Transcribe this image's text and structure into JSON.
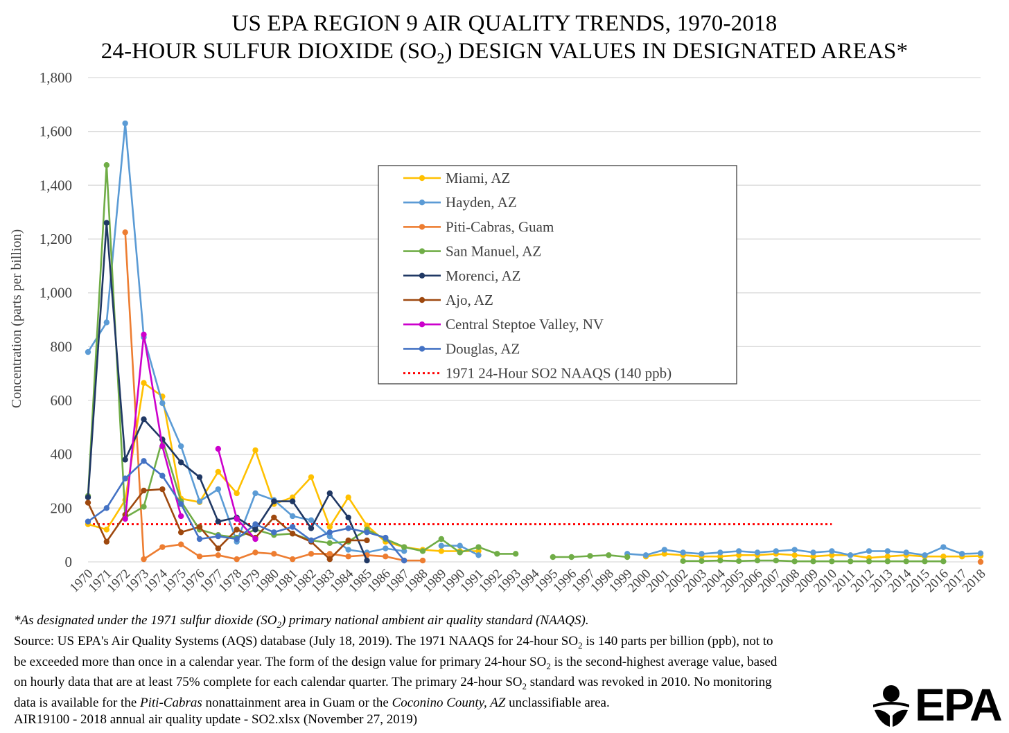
{
  "title": {
    "line1": "US EPA REGION 9 AIR QUALITY TRENDS, 1970-2018",
    "line2_pre": "24-HOUR SULFUR DIOXIDE (SO",
    "line2_sub": "2",
    "line2_post": ") DESIGN VALUES IN DESIGNATED AREAS*"
  },
  "footnote": {
    "star_pre": "*As designated under the 1971 sulfur dioxide (SO",
    "star_sub": "2",
    "star_post": ") primary national ambient air quality standard (NAAQS).",
    "s1": "Source: US EPA's Air Quality Systems (AQS) database (July 18, 2019). The 1971 NAAQS for 24-hour SO",
    "s1_sub": "2",
    "s2": " is 140 parts per billion (ppb), not to",
    "s3": "be exceeded  more than once in a calendar year. The form of the design value for primary 24-hour SO",
    "s3_sub": "2",
    "s4": " is the second-highest average value, based",
    "s5": "on hourly data that are at least 75% complete for each calendar quarter. The primary 24-hour SO",
    "s5_sub": "2",
    "s6": " standard was revoked in 2010. No monitoring",
    "s7": "data is available for the ",
    "s7_italic": "Piti-Cabras",
    "s8": " nonattainment area in Guam or the ",
    "s8_italic": "Coconino County, AZ",
    "s9": " unclassifiable area.",
    "s10": "AIR19100 - 2018 annual air quality update - SO2.xlsx (November 27, 2019)"
  },
  "logo": {
    "text": "EPA"
  },
  "chart_data": {
    "type": "line",
    "ylabel": "Concentration (parts per billion)",
    "xlabel": "",
    "ylim": [
      0,
      1800
    ],
    "yticks": [
      0,
      200,
      400,
      600,
      800,
      1000,
      1200,
      1400,
      1600,
      1800
    ],
    "ytick_labels": [
      "0",
      "200",
      "400",
      "600",
      "800",
      "1,000",
      "1,200",
      "1,400",
      "1,600",
      "1,800"
    ],
    "grid": true,
    "legend_position": "upper-center",
    "x": [
      "1970",
      "1971",
      "1972",
      "1973",
      "1974",
      "1975",
      "1976",
      "1977",
      "1978",
      "1979",
      "1980",
      "1981",
      "1982",
      "1983",
      "1984",
      "1985",
      "1986",
      "1987",
      "1988",
      "1989",
      "1990",
      "1991",
      "1992",
      "1993",
      "1994",
      "1995",
      "1996",
      "1997",
      "1998",
      "1999",
      "2000",
      "2001",
      "2002",
      "2003",
      "2004",
      "2005",
      "2006",
      "2007",
      "2008",
      "2009",
      "2010",
      "2011",
      "2012",
      "2013",
      "2014",
      "2015",
      "2016",
      "2017",
      "2018"
    ],
    "series": [
      {
        "name": "Miami, AZ",
        "color": "#FFC000",
        "values": [
          140,
          120,
          230,
          665,
          615,
          235,
          222,
          335,
          255,
          415,
          215,
          240,
          315,
          130,
          240,
          135,
          75,
          55,
          45,
          40,
          40,
          40,
          null,
          null,
          null,
          null,
          null,
          null,
          null,
          null,
          20,
          30,
          25,
          20,
          20,
          25,
          25,
          30,
          25,
          20,
          25,
          25,
          15,
          20,
          25,
          20,
          20,
          20,
          22
        ]
      },
      {
        "name": "Hayden, AZ",
        "color": "#5B9BD5",
        "values": [
          780,
          890,
          1630,
          835,
          590,
          430,
          225,
          270,
          75,
          255,
          230,
          170,
          155,
          95,
          45,
          35,
          50,
          40,
          null,
          60,
          60,
          25,
          null,
          null,
          null,
          null,
          null,
          null,
          null,
          30,
          25,
          45,
          35,
          30,
          35,
          40,
          35,
          40,
          45,
          35,
          40,
          25,
          40,
          40,
          35,
          25,
          55,
          30,
          32
        ]
      },
      {
        "name": "Piti-Cabras, Guam",
        "color": "#ED7D31",
        "values": [
          null,
          null,
          1225,
          10,
          55,
          65,
          20,
          25,
          10,
          35,
          30,
          10,
          30,
          30,
          20,
          25,
          20,
          5,
          5,
          null,
          null,
          null,
          null,
          null,
          null,
          null,
          null,
          null,
          null,
          null,
          null,
          null,
          null,
          null,
          null,
          null,
          null,
          null,
          null,
          null,
          null,
          null,
          null,
          null,
          null,
          null,
          null,
          null,
          0
        ]
      },
      {
        "name": "San Manuel, AZ",
        "color": "#70AD47",
        "values": [
          245,
          1475,
          165,
          205,
          455,
          225,
          120,
          100,
          90,
          120,
          100,
          105,
          80,
          70,
          75,
          120,
          85,
          55,
          40,
          85,
          35,
          55,
          30,
          30,
          null,
          18,
          18,
          22,
          25,
          18,
          null,
          null,
          3,
          3,
          5,
          3,
          5,
          5,
          2,
          2,
          2,
          2,
          2,
          2,
          2,
          2,
          2,
          null,
          null
        ]
      },
      {
        "name": "Morenci, AZ",
        "color": "#203864",
        "values": [
          240,
          1260,
          380,
          530,
          455,
          370,
          315,
          150,
          165,
          120,
          225,
          225,
          125,
          255,
          165,
          5,
          null,
          null,
          null,
          null,
          null,
          null,
          null,
          null,
          null,
          null,
          null,
          null,
          null,
          null,
          null,
          null,
          null,
          null,
          null,
          null,
          null,
          null,
          null,
          null,
          null,
          null,
          null,
          null,
          null,
          null,
          null,
          null,
          null
        ]
      },
      {
        "name": "Ajo, AZ",
        "color": "#9E480E",
        "values": [
          220,
          75,
          175,
          265,
          270,
          110,
          130,
          50,
          120,
          90,
          165,
          105,
          75,
          10,
          80,
          80,
          null,
          null,
          null,
          null,
          null,
          null,
          null,
          null,
          null,
          null,
          null,
          null,
          null,
          null,
          null,
          null,
          null,
          null,
          null,
          null,
          null,
          null,
          null,
          null,
          null,
          null,
          null,
          null,
          null,
          null,
          null,
          null,
          null
        ]
      },
      {
        "name": "Central Steptoe Valley, NV",
        "color": "#CC00CC",
        "values": [
          null,
          null,
          160,
          845,
          430,
          170,
          null,
          420,
          160,
          85,
          null,
          null,
          null,
          null,
          null,
          null,
          null,
          null,
          null,
          null,
          null,
          null,
          null,
          null,
          null,
          null,
          null,
          null,
          null,
          null,
          null,
          null,
          null,
          null,
          null,
          null,
          null,
          null,
          null,
          null,
          null,
          null,
          null,
          null,
          null,
          null,
          null,
          null,
          null
        ]
      },
      {
        "name": "Douglas, AZ",
        "color": "#4472C4",
        "values": [
          150,
          200,
          310,
          375,
          320,
          215,
          85,
          95,
          85,
          140,
          110,
          130,
          80,
          110,
          125,
          110,
          90,
          5,
          null,
          null,
          null,
          null,
          null,
          null,
          null,
          null,
          null,
          null,
          null,
          null,
          null,
          null,
          null,
          null,
          null,
          null,
          null,
          null,
          null,
          null,
          null,
          null,
          null,
          null,
          null,
          null,
          null,
          null,
          null
        ]
      }
    ],
    "reference_line": {
      "name": "1971 24-Hour SO2 NAAQS (140 ppb)",
      "value": 140,
      "color": "#FF0000",
      "x_start": "1970",
      "x_end": "2010"
    }
  }
}
